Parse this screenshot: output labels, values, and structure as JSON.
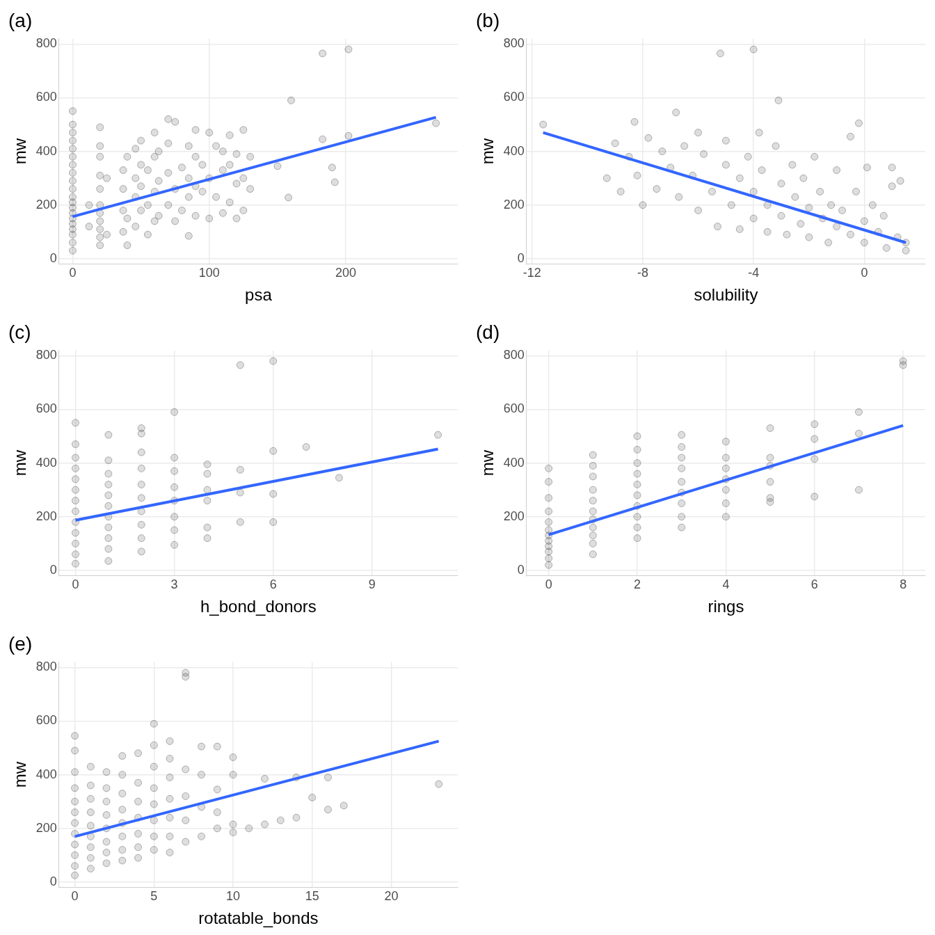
{
  "chart_data": [
    {
      "type": "scatter",
      "title": "(a)",
      "x_label": "psa",
      "y_label": "mw",
      "xlim": [
        -10,
        282
      ],
      "xticks": [
        0,
        100,
        200
      ],
      "ylim": [
        -20,
        820
      ],
      "yticks": [
        0,
        200,
        400,
        600,
        800
      ],
      "grid": true,
      "series": [
        {
          "type": "scatter",
          "marker": "circle",
          "color": "#000000",
          "x": [
            0,
            0,
            0,
            0,
            0,
            0,
            0,
            0,
            0,
            0,
            0,
            0,
            0,
            0,
            0,
            0,
            0,
            0,
            0,
            0,
            20,
            20,
            20,
            20,
            20,
            20,
            20,
            20,
            20,
            20,
            20,
            12,
            12,
            25,
            25,
            37,
            37,
            37,
            37,
            40,
            40,
            40,
            46,
            46,
            46,
            46,
            50,
            50,
            50,
            50,
            55,
            55,
            55,
            60,
            60,
            60,
            60,
            63,
            63,
            63,
            70,
            70,
            70,
            70,
            75,
            75,
            75,
            80,
            80,
            85,
            85,
            85,
            85,
            90,
            90,
            90,
            90,
            95,
            95,
            100,
            100,
            100,
            105,
            105,
            110,
            110,
            110,
            115,
            115,
            115,
            120,
            120,
            120,
            125,
            125,
            125,
            130,
            130,
            183,
            202,
            160,
            202,
            183,
            190,
            192,
            266,
            158,
            150
          ],
          "values": [
            30,
            60,
            90,
            110,
            130,
            150,
            170,
            190,
            210,
            230,
            260,
            290,
            320,
            350,
            380,
            410,
            440,
            470,
            500,
            550,
            50,
            80,
            110,
            140,
            170,
            200,
            260,
            310,
            380,
            420,
            490,
            120,
            200,
            90,
            300,
            100,
            180,
            260,
            330,
            50,
            150,
            380,
            120,
            230,
            300,
            410,
            180,
            270,
            350,
            440,
            90,
            200,
            330,
            140,
            250,
            380,
            470,
            160,
            290,
            400,
            200,
            320,
            430,
            520,
            140,
            260,
            510,
            180,
            340,
            85,
            230,
            300,
            420,
            160,
            270,
            380,
            480,
            250,
            350,
            150,
            300,
            470,
            230,
            420,
            170,
            330,
            400,
            210,
            350,
            460,
            150,
            280,
            390,
            180,
            300,
            480,
            260,
            380,
            765,
            780,
            590,
            458,
            445,
            340,
            285,
            505,
            228,
            345
          ]
        },
        {
          "type": "line",
          "line_style": "solid",
          "color": "#3366ff",
          "x": [
            0,
            266
          ],
          "values": [
            157,
            527
          ]
        }
      ]
    },
    {
      "type": "scatter",
      "title": "(b)",
      "x_label": "solubility",
      "y_label": "mw",
      "xlim": [
        -12.2,
        2.2
      ],
      "xticks": [
        -12,
        -8,
        -4,
        0
      ],
      "ylim": [
        -20,
        820
      ],
      "yticks": [
        0,
        200,
        400,
        600,
        800
      ],
      "grid": true,
      "series": [
        {
          "type": "scatter",
          "marker": "circle",
          "color": "#000000",
          "x": [
            -11.6,
            -9.3,
            -9,
            -8.8,
            -8.5,
            -8.3,
            -8.2,
            -8,
            -7.8,
            -7.5,
            -7.3,
            -7,
            -6.8,
            -6.7,
            -6.5,
            -6.2,
            -6,
            -6,
            -5.8,
            -5.5,
            -5.3,
            -5.2,
            -5,
            -5,
            -4.8,
            -4.5,
            -4.5,
            -4.2,
            -4,
            -4,
            -4,
            -3.8,
            -3.7,
            -3.5,
            -3.5,
            -3.2,
            -3.1,
            -3,
            -3,
            -2.8,
            -2.6,
            -2.5,
            -2.3,
            -2.2,
            -2,
            -2,
            -1.8,
            -1.6,
            -1.5,
            -1.3,
            -1.2,
            -1,
            -1,
            -0.8,
            -0.5,
            -0.5,
            -0.3,
            -0.2,
            0,
            0,
            0.1,
            0.3,
            0.5,
            0.7,
            0.8,
            1,
            1,
            1.2,
            1.3,
            1.5,
            1.5
          ],
          "values": [
            500,
            300,
            430,
            250,
            380,
            510,
            310,
            200,
            450,
            260,
            400,
            340,
            545,
            230,
            420,
            310,
            180,
            470,
            390,
            250,
            120,
            765,
            350,
            440,
            200,
            110,
            300,
            380,
            780,
            250,
            150,
            470,
            330,
            100,
            200,
            420,
            590,
            280,
            160,
            90,
            350,
            230,
            130,
            300,
            190,
            80,
            380,
            250,
            150,
            60,
            200,
            120,
            330,
            180,
            455,
            90,
            250,
            505,
            140,
            60,
            340,
            200,
            100,
            160,
            40,
            270,
            340,
            80,
            290,
            60,
            30
          ]
        },
        {
          "type": "line",
          "line_style": "solid",
          "color": "#3366ff",
          "x": [
            -11.6,
            1.5
          ],
          "values": [
            470,
            60
          ]
        }
      ]
    },
    {
      "type": "scatter",
      "title": "(c)",
      "x_label": "h_bond_donors",
      "y_label": "mw",
      "xlim": [
        -0.5,
        11.6
      ],
      "xticks": [
        0,
        3,
        6,
        9
      ],
      "ylim": [
        -20,
        820
      ],
      "yticks": [
        0,
        200,
        400,
        600,
        800
      ],
      "grid": true,
      "series": [
        {
          "type": "scatter",
          "marker": "circle",
          "color": "#000000",
          "x": [
            0,
            0,
            0,
            0,
            0,
            0,
            0,
            0,
            0,
            0,
            0,
            0,
            0,
            1,
            1,
            1,
            1,
            1,
            1,
            1,
            1,
            1,
            1,
            1,
            2,
            2,
            2,
            2,
            2,
            2,
            2,
            2,
            2,
            2,
            3,
            3,
            3,
            3,
            3,
            3,
            3,
            3,
            4,
            4,
            4,
            4,
            4,
            4,
            5,
            5,
            5,
            5,
            6,
            6,
            6,
            6,
            7,
            8,
            11
          ],
          "values": [
            25,
            60,
            100,
            140,
            180,
            220,
            260,
            300,
            340,
            380,
            420,
            470,
            550,
            35,
            80,
            120,
            160,
            200,
            240,
            280,
            320,
            360,
            410,
            505,
            70,
            120,
            170,
            220,
            270,
            320,
            380,
            440,
            510,
            530,
            95,
            150,
            200,
            260,
            310,
            370,
            420,
            590,
            120,
            160,
            260,
            300,
            360,
            395,
            180,
            290,
            375,
            765,
            180,
            285,
            445,
            780,
            460,
            345,
            505
          ]
        },
        {
          "type": "line",
          "line_style": "solid",
          "color": "#3366ff",
          "x": [
            0,
            11
          ],
          "values": [
            187,
            452
          ]
        }
      ]
    },
    {
      "type": "scatter",
      "title": "(d)",
      "x_label": "rings",
      "y_label": "mw",
      "xlim": [
        -0.5,
        8.5
      ],
      "xticks": [
        0,
        2,
        4,
        6,
        8
      ],
      "ylim": [
        -20,
        820
      ],
      "yticks": [
        0,
        200,
        400,
        600,
        800
      ],
      "grid": true,
      "series": [
        {
          "type": "scatter",
          "marker": "circle",
          "color": "#000000",
          "x": [
            0,
            0,
            0,
            0,
            0,
            0,
            0,
            0,
            0,
            0,
            0,
            0,
            1,
            1,
            1,
            1,
            1,
            1,
            1,
            1,
            1,
            1,
            1,
            2,
            2,
            2,
            2,
            2,
            2,
            2,
            2,
            2,
            2,
            3,
            3,
            3,
            3,
            3,
            3,
            3,
            3,
            3,
            4,
            4,
            4,
            4,
            4,
            4,
            4,
            5,
            5,
            5,
            5,
            5,
            5,
            6,
            6,
            6,
            6,
            7,
            7,
            7,
            8,
            8
          ],
          "values": [
            20,
            45,
            70,
            90,
            110,
            130,
            150,
            180,
            220,
            270,
            330,
            380,
            60,
            100,
            130,
            160,
            190,
            220,
            260,
            300,
            350,
            390,
            430,
            120,
            160,
            200,
            240,
            280,
            320,
            360,
            400,
            450,
            500,
            160,
            200,
            250,
            290,
            330,
            380,
            420,
            460,
            505,
            200,
            250,
            300,
            340,
            380,
            420,
            480,
            255,
            270,
            330,
            390,
            420,
            530,
            275,
            415,
            490,
            545,
            300,
            510,
            590,
            765,
            780
          ]
        },
        {
          "type": "line",
          "line_style": "solid",
          "color": "#3366ff",
          "x": [
            0,
            8
          ],
          "values": [
            133,
            540
          ]
        }
      ]
    },
    {
      "type": "scatter",
      "title": "(e)",
      "x_label": "rotatable_bonds",
      "y_label": "mw",
      "xlim": [
        -1,
        24.2
      ],
      "xticks": [
        0,
        5,
        10,
        15,
        20
      ],
      "ylim": [
        -20,
        820
      ],
      "yticks": [
        0,
        200,
        400,
        600,
        800
      ],
      "grid": true,
      "series": [
        {
          "type": "scatter",
          "marker": "circle",
          "color": "#000000",
          "x": [
            0,
            0,
            0,
            0,
            0,
            0,
            0,
            0,
            0,
            0,
            0,
            0,
            1,
            1,
            1,
            1,
            1,
            1,
            1,
            1,
            1,
            2,
            2,
            2,
            2,
            2,
            2,
            2,
            2,
            3,
            3,
            3,
            3,
            3,
            3,
            3,
            3,
            4,
            4,
            4,
            4,
            4,
            4,
            4,
            5,
            5,
            5,
            5,
            5,
            5,
            5,
            5,
            6,
            6,
            6,
            6,
            6,
            6,
            6,
            7,
            7,
            7,
            7,
            7,
            7,
            8,
            8,
            8,
            8,
            9,
            9,
            9,
            9,
            10,
            10,
            10,
            10,
            11,
            12,
            12,
            13,
            14,
            14,
            15,
            16,
            16,
            17,
            23
          ],
          "values": [
            25,
            60,
            100,
            140,
            180,
            220,
            260,
            300,
            350,
            410,
            490,
            545,
            50,
            90,
            130,
            170,
            210,
            260,
            310,
            360,
            430,
            70,
            110,
            150,
            200,
            250,
            300,
            350,
            410,
            80,
            120,
            170,
            220,
            270,
            330,
            400,
            470,
            90,
            130,
            180,
            240,
            300,
            370,
            480,
            120,
            170,
            230,
            290,
            350,
            430,
            510,
            590,
            110,
            170,
            240,
            310,
            390,
            460,
            525,
            150,
            230,
            320,
            420,
            765,
            780,
            170,
            280,
            400,
            505,
            200,
            260,
            345,
            505,
            185,
            215,
            400,
            465,
            200,
            215,
            385,
            230,
            240,
            390,
            315,
            270,
            390,
            285,
            365
          ]
        },
        {
          "type": "line",
          "line_style": "solid",
          "color": "#3366ff",
          "x": [
            0,
            23
          ],
          "values": [
            170,
            525
          ]
        }
      ]
    }
  ]
}
